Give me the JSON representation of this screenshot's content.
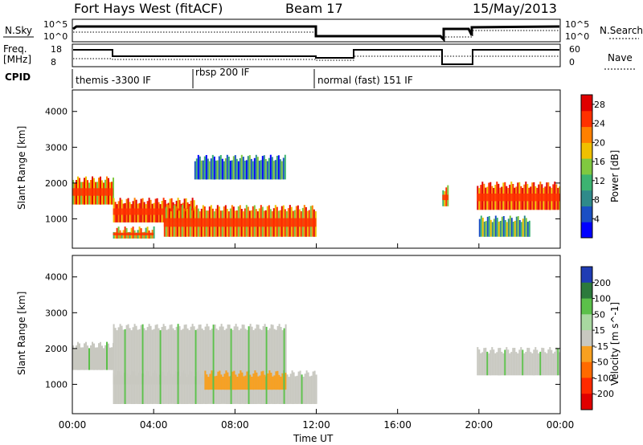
{
  "header": {
    "station": "Fort Hays West (fitACF)",
    "beam": "Beam 17",
    "date": "15/May/2013"
  },
  "strips": {
    "nsky": {
      "label": "N.Sky",
      "tick_top": "10^5",
      "tick_bot": "10^0"
    },
    "nsearch": {
      "label": "N.Search",
      "tick_top": "10^5",
      "tick_bot": "10^0"
    },
    "freq": {
      "label_line1": "Freq.",
      "label_line2": "[MHz]",
      "tick_top": "18",
      "tick_bot": "8"
    },
    "nave": {
      "label": "Nave",
      "tick_top": "60",
      "tick_bot": "0"
    },
    "cpid": {
      "label": "CPID",
      "modes": [
        {
          "name": "themis -3300 IF",
          "start_h": 0,
          "end_h": 6
        },
        {
          "name": "rbsp 200 IF",
          "start_h": 6,
          "end_h": 12
        },
        {
          "name": "normal (fast) 151 IF",
          "start_h": 12,
          "end_h": 24
        }
      ]
    }
  },
  "chart_data": [
    {
      "type": "heatmap",
      "title": "",
      "xlabel": "Time UT",
      "ylabel": "Slant Range [km]",
      "x_range_hours": [
        0,
        24
      ],
      "ylim": [
        180,
        4600
      ],
      "y_ticks": [
        "1000",
        "2000",
        "3000",
        "4000"
      ],
      "colorbar": {
        "label": "Power [dB]",
        "ticks": [
          "4",
          "8",
          "12",
          "16",
          "20",
          "24",
          "28"
        ],
        "range": [
          0,
          30
        ],
        "colors": [
          "#0000ff",
          "#1a4fc4",
          "#2f8a8a",
          "#3cb371",
          "#80c840",
          "#f0c000",
          "#ff8000",
          "#ff3000",
          "#e00000"
        ]
      },
      "bands": [
        {
          "start_h": 0.0,
          "end_h": 2.0,
          "range_km": [
            1400,
            2100
          ],
          "peak_db": 22
        },
        {
          "start_h": 2.0,
          "end_h": 6.0,
          "range_km": [
            900,
            1500
          ],
          "peak_db": 26
        },
        {
          "start_h": 6.0,
          "end_h": 10.5,
          "range_km": [
            2100,
            2700
          ],
          "peak_db": 8
        },
        {
          "start_h": 2.0,
          "end_h": 4.0,
          "range_km": [
            450,
            700
          ],
          "peak_db": 18
        },
        {
          "start_h": 4.5,
          "end_h": 12.0,
          "range_km": [
            500,
            1300
          ],
          "peak_db": 24
        },
        {
          "start_h": 18.2,
          "end_h": 18.5,
          "range_km": [
            1350,
            1850
          ],
          "peak_db": 20
        },
        {
          "start_h": 19.9,
          "end_h": 24.0,
          "range_km": [
            1250,
            1950
          ],
          "peak_db": 28
        },
        {
          "start_h": 20.0,
          "end_h": 22.5,
          "range_km": [
            500,
            1000
          ],
          "peak_db": 10
        }
      ]
    },
    {
      "type": "heatmap",
      "title": "",
      "xlabel": "Time UT",
      "ylabel": "Slant Range [km]",
      "x_range_hours": [
        0,
        24
      ],
      "x_ticks": [
        "00:00",
        "04:00",
        "08:00",
        "12:00",
        "16:00",
        "20:00",
        "00:00"
      ],
      "ylim": [
        180,
        4600
      ],
      "y_ticks": [
        "1000",
        "2000",
        "3000",
        "4000"
      ],
      "colorbar": {
        "label": "Velocity [m s^-1]",
        "ticks": [
          "200",
          "100",
          "50",
          "15",
          "-15",
          "-50",
          "-100",
          "-200"
        ],
        "colors": [
          "#1f3cb4",
          "#2c7a3c",
          "#5bc04a",
          "#a8d8a0",
          "#c8c8c0",
          "#f7a020",
          "#ff6a00",
          "#ff2a00",
          "#e00000"
        ]
      },
      "bands": [
        {
          "start_h": 0.0,
          "end_h": 2.0,
          "range_km": [
            1400,
            2100
          ],
          "velocity": "ground"
        },
        {
          "start_h": 2.0,
          "end_h": 10.5,
          "range_km": [
            1000,
            2600
          ],
          "velocity": "ground"
        },
        {
          "start_h": 2.0,
          "end_h": 12.0,
          "range_km": [
            450,
            1300
          ],
          "velocity": "ground"
        },
        {
          "start_h": 6.5,
          "end_h": 10.5,
          "range_km": [
            850,
            1300
          ],
          "velocity": "-50"
        },
        {
          "start_h": 19.9,
          "end_h": 24.0,
          "range_km": [
            1250,
            1950
          ],
          "velocity": "ground"
        }
      ]
    }
  ]
}
